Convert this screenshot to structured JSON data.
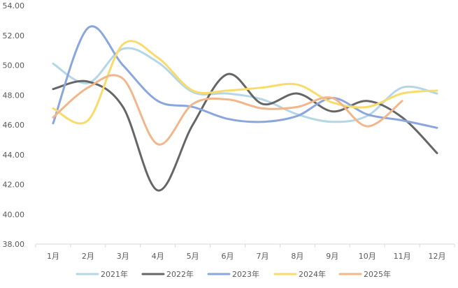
{
  "chart_data": {
    "type": "line",
    "title": "",
    "xlabel": "",
    "ylabel": "",
    "categories": [
      "1月",
      "2月",
      "3月",
      "4月",
      "5月",
      "6月",
      "7月",
      "8月",
      "9月",
      "10月",
      "11月",
      "12月"
    ],
    "y_ticks": [
      "38.00",
      "40.00",
      "42.00",
      "44.00",
      "46.00",
      "48.00",
      "50.00",
      "52.00",
      "54.00"
    ],
    "ylim": [
      38,
      54
    ],
    "grid": false,
    "legend_position": "bottom",
    "smooth": true,
    "series": [
      {
        "name": "2021年",
        "color": "#b4d7e7",
        "values": [
          50.1,
          48.8,
          51.1,
          50.2,
          48.2,
          48.1,
          47.7,
          46.7,
          46.2,
          46.6,
          48.5,
          48.1
        ]
      },
      {
        "name": "2022年",
        "color": "#666666",
        "values": [
          48.4,
          48.9,
          47.2,
          41.6,
          46.0,
          49.4,
          47.4,
          48.1,
          46.9,
          47.6,
          46.5,
          44.1
        ]
      },
      {
        "name": "2023年",
        "color": "#8aa6df",
        "values": [
          46.1,
          52.5,
          50.0,
          47.6,
          47.2,
          46.4,
          46.2,
          46.6,
          47.8,
          46.7,
          46.3,
          45.8
        ]
      },
      {
        "name": "2024年",
        "color": "#f9db6b",
        "values": [
          47.1,
          46.3,
          51.4,
          50.5,
          48.3,
          48.3,
          48.5,
          48.7,
          47.5,
          47.2,
          48.1,
          48.3
        ]
      },
      {
        "name": "2025年",
        "color": "#f2b68b",
        "values": [
          46.5,
          48.5,
          49.1,
          44.7,
          47.4,
          47.7,
          47.1,
          47.2,
          47.8,
          45.9,
          47.6,
          null
        ]
      }
    ]
  }
}
